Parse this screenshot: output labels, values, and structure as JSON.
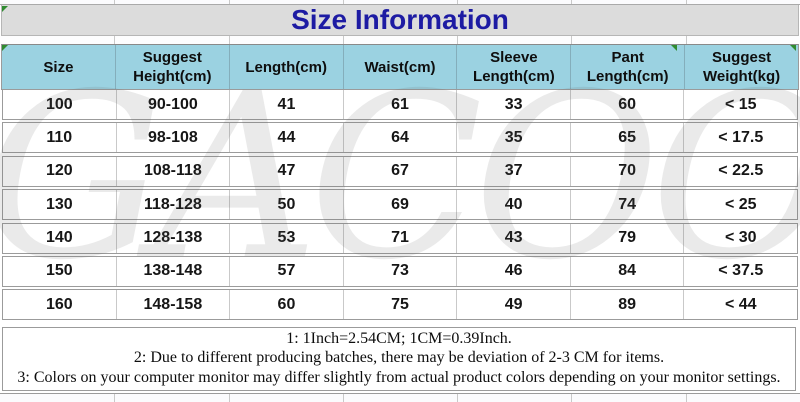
{
  "title": "Size Information",
  "watermark_text": "GACOOS",
  "colors": {
    "header_bg": "#9bd2e1",
    "title_bg": "#dcdcdc",
    "title_color": "#1d1ba3",
    "marker_green": "#2f8b30",
    "grid_dark": "#9b9b9b",
    "grid_light": "#c9c9c9"
  },
  "table": {
    "headers": [
      "Size",
      "Suggest Height(cm)",
      "Length(cm)",
      "Waist(cm)",
      "Sleeve Length(cm)",
      "Pant Length(cm)",
      "Suggest Weight(kg)"
    ],
    "rows": [
      [
        "100",
        "90-100",
        "41",
        "61",
        "33",
        "60",
        "< 15"
      ],
      [
        "110",
        "98-108",
        "44",
        "64",
        "35",
        "65",
        "< 17.5"
      ],
      [
        "120",
        "108-118",
        "47",
        "67",
        "37",
        "70",
        "< 22.5"
      ],
      [
        "130",
        "118-128",
        "50",
        "69",
        "40",
        "74",
        "< 25"
      ],
      [
        "140",
        "128-138",
        "53",
        "71",
        "43",
        "79",
        "< 30"
      ],
      [
        "150",
        "138-148",
        "57",
        "73",
        "46",
        "84",
        "< 37.5"
      ],
      [
        "160",
        "148-158",
        "60",
        "75",
        "49",
        "89",
        "< 44"
      ]
    ]
  },
  "notes": {
    "lines": [
      "1: 1Inch=2.54CM; 1CM=0.39Inch.",
      "2: Due to different producing batches, there may be deviation of 2-3 CM for items.",
      "3: Colors on your computer monitor may differ slightly from actual product colors depending on your monitor settings."
    ]
  }
}
